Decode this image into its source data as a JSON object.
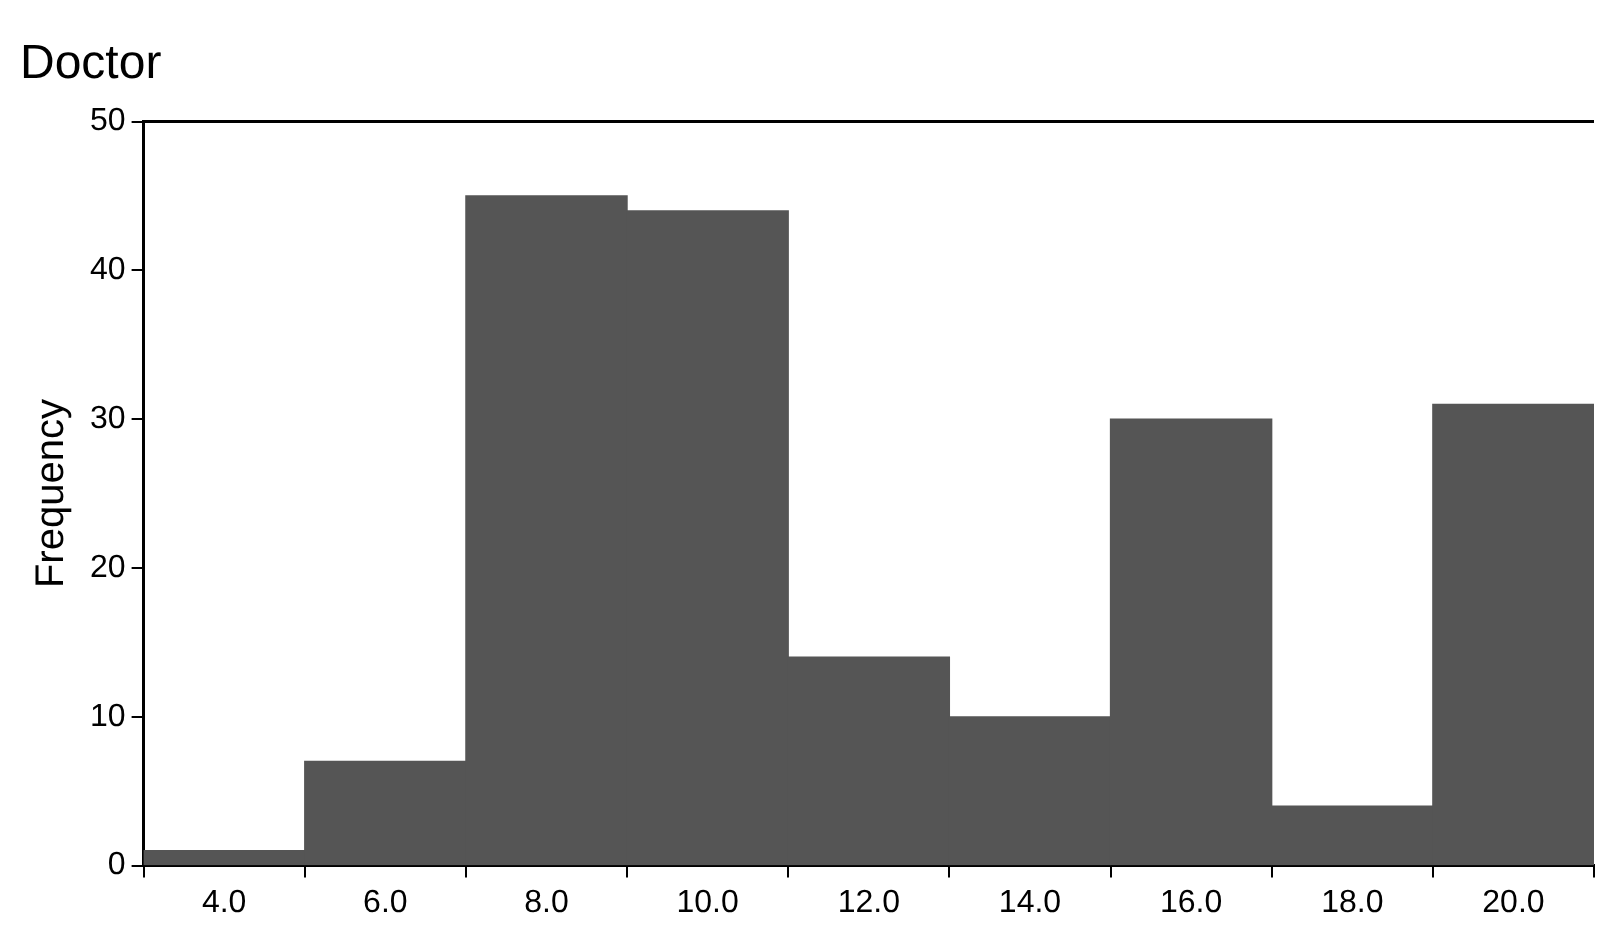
{
  "chart_data": {
    "type": "histogram",
    "title": "Doctor",
    "ylabel": "Frequency",
    "bins": [
      3,
      5,
      7,
      9,
      11,
      13,
      15,
      17,
      19,
      21
    ],
    "values": [
      1,
      7,
      45,
      44,
      14,
      10,
      30,
      4,
      31
    ],
    "color": "#555555",
    "xlim": [
      3,
      21
    ],
    "xticks": [
      {
        "value": 4,
        "label": "4.0"
      },
      {
        "value": 6,
        "label": "6.0"
      },
      {
        "value": 8,
        "label": "8.0"
      },
      {
        "value": 10,
        "label": "10.0"
      },
      {
        "value": 12,
        "label": "12.0"
      },
      {
        "value": 14,
        "label": "14.0"
      },
      {
        "value": 16,
        "label": "16.0"
      },
      {
        "value": 18,
        "label": "18.0"
      },
      {
        "value": 20,
        "label": "20.0"
      }
    ],
    "ylim": [
      0,
      50
    ],
    "yticks": [
      0,
      10,
      20,
      30,
      40,
      50
    ],
    "grid": false,
    "legend": false
  }
}
